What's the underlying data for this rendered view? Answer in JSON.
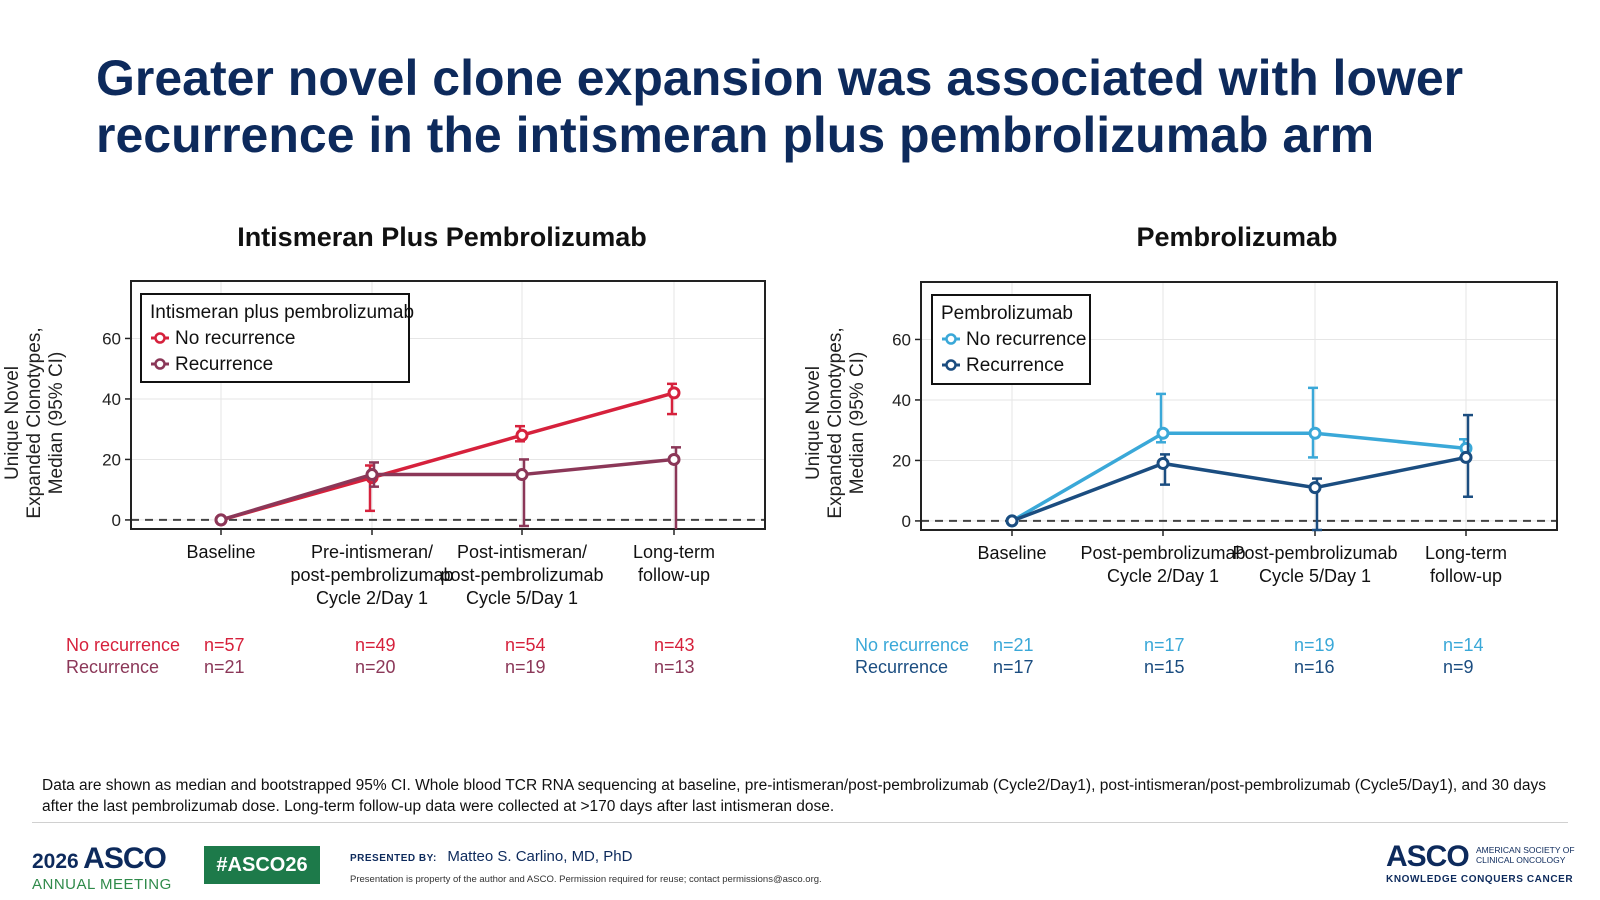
{
  "title": "Greater novel clone expansion was associated with lower recurrence in the intismeran plus pembrolizumab arm",
  "chart_data": [
    {
      "type": "line",
      "title": "Intismeran Plus Pembrolizumab",
      "ylabel_lines": [
        "Unique Novel",
        "Expanded Clonotypes,",
        "Median (95% CI)"
      ],
      "categories": [
        [
          "Baseline"
        ],
        [
          "Pre-intismeran/",
          "post-pembrolizumab",
          "Cycle 2/Day 1"
        ],
        [
          "Post-intismeran/",
          "post-pembrolizumab",
          "Cycle 5/Day 1"
        ],
        [
          "Long-term",
          "follow-up"
        ]
      ],
      "ylim": [
        -3,
        79
      ],
      "yticks": [
        0,
        20,
        40,
        60
      ],
      "grid": true,
      "reference_line": 0,
      "legend": {
        "title": "Intismeran plus pembrolizumab",
        "placement": "top-left",
        "entries": [
          "No recurrence",
          "Recurrence"
        ]
      },
      "series": [
        {
          "name": "No recurrence",
          "color": "#d6213c",
          "values": [
            0,
            14,
            28,
            42
          ],
          "ci_low": [
            0,
            3,
            26,
            35
          ],
          "ci_high": [
            0,
            18,
            31,
            45
          ],
          "n": [
            "n=57",
            "n=49",
            "n=54",
            "n=43"
          ]
        },
        {
          "name": "Recurrence",
          "color": "#8b3758",
          "values": [
            0,
            15,
            15,
            20
          ],
          "ci_low": [
            0,
            11,
            -2,
            -5
          ],
          "ci_high": [
            0,
            19,
            20,
            24
          ],
          "n": [
            "n=21",
            "n=20",
            "n=19",
            "n=13"
          ]
        }
      ]
    },
    {
      "type": "line",
      "title": "Pembrolizumab",
      "ylabel_lines": [
        "Unique Novel",
        "Expanded Clonotypes,",
        "Median (95% CI)"
      ],
      "categories": [
        [
          "Baseline"
        ],
        [
          "Post-pembrolizumab",
          "Cycle 2/Day 1"
        ],
        [
          "Post-pembrolizumab",
          "Cycle 5/Day 1"
        ],
        [
          "Long-term",
          "follow-up"
        ]
      ],
      "ylim": [
        -3,
        79
      ],
      "yticks": [
        0,
        20,
        40,
        60
      ],
      "grid": true,
      "reference_line": 0,
      "legend": {
        "title": "Pembrolizumab",
        "placement": "top-left",
        "entries": [
          "No recurrence",
          "Recurrence"
        ]
      },
      "series": [
        {
          "name": "No recurrence",
          "color": "#3aa8d8",
          "values": [
            0,
            29,
            29,
            24
          ],
          "ci_low": [
            0,
            26,
            21,
            21
          ],
          "ci_high": [
            0,
            42,
            44,
            27
          ],
          "n": [
            "n=21",
            "n=17",
            "n=19",
            "n=14"
          ]
        },
        {
          "name": "Recurrence",
          "color": "#1b4d80",
          "values": [
            0,
            19,
            11,
            21
          ],
          "ci_low": [
            0,
            12,
            -3,
            8
          ],
          "ci_high": [
            0,
            22,
            14,
            35
          ],
          "n": [
            "n=17",
            "n=15",
            "n=16",
            "n=9"
          ]
        }
      ]
    }
  ],
  "footnote": "Data are shown as median and bootstrapped 95% CI. Whole blood TCR RNA sequencing at baseline, pre-intismeran/post-pembrolizumab (Cycle2/Day1), post-intismeran/post-pembrolizumab (Cycle5/Day1), and 30 days after the last pembrolizumab dose. Long-term follow-up data were collected at >170 days after last intismeran dose.",
  "footer": {
    "year": "2026",
    "asco": "ASCO",
    "meeting": "ANNUAL MEETING",
    "hashtag": "#ASCO26",
    "presented_by": "PRESENTED BY:",
    "presenter": "Matteo S. Carlino, MD, PhD",
    "permission": "Presentation is property of the author and ASCO. Permission required for reuse; contact permissions@asco.org.",
    "society_line1": "AMERICAN SOCIETY OF",
    "society_line2": "CLINICAL ONCOLOGY",
    "tagline": "KNOWLEDGE CONQUERS CANCER"
  }
}
